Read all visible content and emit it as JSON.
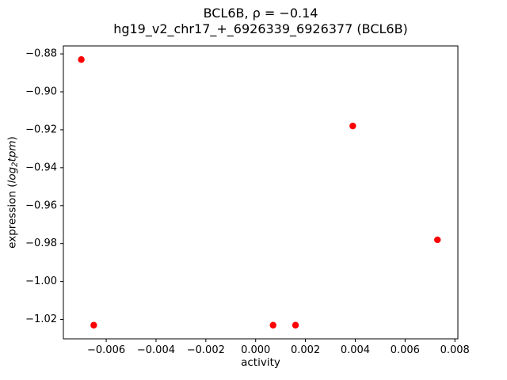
{
  "chart_data": {
    "type": "scatter",
    "title": "BCL6B, ρ = −0.14",
    "subtitle": "hg19_v2_chr17_+_6926339_6926377 (BCL6B)",
    "xlabel": "activity",
    "ylabel": {
      "prefix": "expression (",
      "math": "log",
      "sub": "2",
      "math2": "tpm",
      "suffix": ")"
    },
    "points": {
      "x": [
        -0.007,
        -0.0065,
        0.0007,
        0.0016,
        0.0039,
        0.0073
      ],
      "y": [
        -0.883,
        -1.023,
        -1.023,
        -1.023,
        -0.918,
        -0.978
      ]
    },
    "marker_color": "#ff0000",
    "marker_radius": 4.2,
    "xlim": [
      -0.00772,
      0.00812
    ],
    "ylim": [
      -1.0302,
      -0.8758
    ],
    "xticks": [
      {
        "value": -0.006,
        "label": "−0.006"
      },
      {
        "value": -0.004,
        "label": "−0.004"
      },
      {
        "value": -0.002,
        "label": "−0.002"
      },
      {
        "value": 0.0,
        "label": "0.000"
      },
      {
        "value": 0.002,
        "label": "0.002"
      },
      {
        "value": 0.004,
        "label": "0.004"
      },
      {
        "value": 0.006,
        "label": "0.006"
      },
      {
        "value": 0.008,
        "label": "0.008"
      }
    ],
    "yticks": [
      {
        "value": -0.88,
        "label": "−0.88"
      },
      {
        "value": -0.9,
        "label": "−0.90"
      },
      {
        "value": -0.92,
        "label": "−0.92"
      },
      {
        "value": -0.94,
        "label": "−0.94"
      },
      {
        "value": -0.96,
        "label": "−0.96"
      },
      {
        "value": -0.98,
        "label": "−0.98"
      },
      {
        "value": -1.0,
        "label": "−1.00"
      },
      {
        "value": -1.02,
        "label": "−1.02"
      }
    ],
    "grid": false,
    "legend_position": "none"
  }
}
